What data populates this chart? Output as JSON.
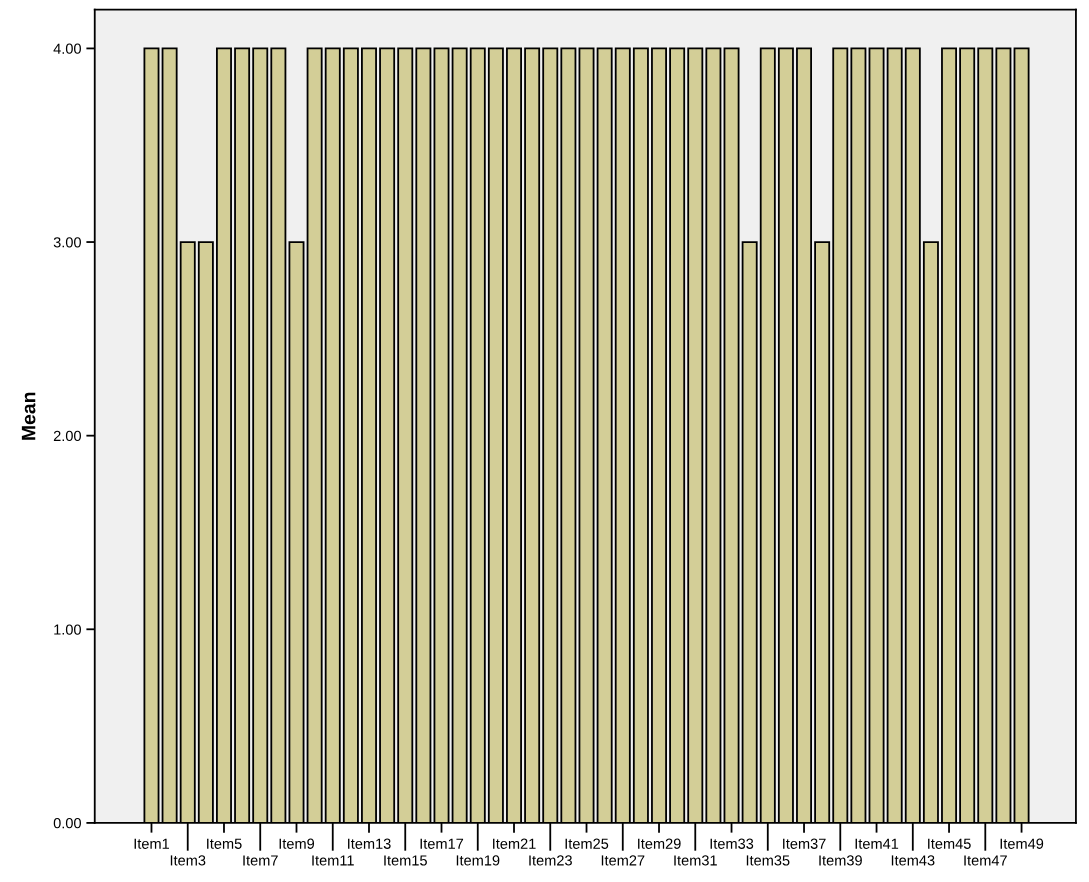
{
  "chart_data": {
    "type": "bar",
    "ylabel": "Mean",
    "categories": [
      "Item1",
      null,
      "Item3",
      null,
      "Item5",
      null,
      "Item7",
      null,
      "Item9",
      null,
      "Item11",
      null,
      "Item13",
      null,
      "Item15",
      null,
      "Item17",
      null,
      "Item19",
      null,
      "Item21",
      null,
      "Item23",
      null,
      "Item25",
      null,
      "Item27",
      null,
      "Item29",
      null,
      "Item31",
      null,
      "Item33",
      null,
      "Item35",
      null,
      "Item37",
      null,
      "Item39",
      null,
      "Item41",
      null,
      "Item43",
      null,
      "Item45",
      null,
      "Item47",
      null,
      "Item49"
    ],
    "values": [
      4,
      4,
      3,
      3,
      4,
      4,
      4,
      4,
      3,
      4,
      4,
      4,
      4,
      4,
      4,
      4,
      4,
      4,
      4,
      4,
      4,
      4,
      4,
      4,
      4,
      4,
      4,
      4,
      4,
      4,
      4,
      4,
      4,
      3,
      4,
      4,
      4,
      3,
      4,
      4,
      4,
      4,
      4,
      3,
      4,
      4,
      4,
      4,
      4
    ],
    "color": "#d3ce97",
    "ylim": [
      0,
      4.2
    ],
    "yticks": [
      {
        "value": 0,
        "label": "0.00"
      },
      {
        "value": 1,
        "label": "1.00"
      },
      {
        "value": 2,
        "label": "2.00"
      },
      {
        "value": 3,
        "label": "3.00"
      },
      {
        "value": 4,
        "label": "4.00"
      }
    ],
    "grid": false,
    "legend": false
  }
}
